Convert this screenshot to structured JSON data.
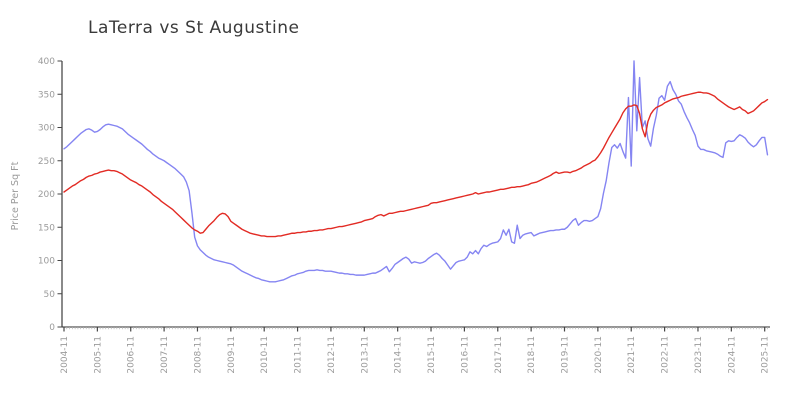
{
  "chart_data": {
    "type": "line",
    "title": "LaTerra vs St Augustine",
    "xlabel": "",
    "ylabel": "Price Per Sq Ft",
    "ylim": [
      0,
      400
    ],
    "y_ticks": [
      0,
      50,
      100,
      150,
      200,
      250,
      300,
      350,
      400
    ],
    "x_tick_labels": [
      "2004-11",
      "2005-11",
      "2006-11",
      "2007-11",
      "2008-11",
      "2009-11",
      "2010-11",
      "2011-11",
      "2012-11",
      "2013-11",
      "2014-11",
      "2015-11",
      "2016-11",
      "2017-11",
      "2018-11",
      "2019-11",
      "2020-11",
      "2021-11",
      "2022-11",
      "2023-11",
      "2024-11",
      "2025-11"
    ],
    "x_start": "2004-11",
    "x_interval": "monthly",
    "months_per_major_tick": 12,
    "grid": false,
    "legend_position": "none",
    "series": [
      {
        "name": "LaTerra",
        "color": "#8585f2",
        "values": [
          268,
          271,
          275,
          279,
          283,
          287,
          291,
          294,
          297,
          298,
          296,
          293,
          294,
          297,
          301,
          304,
          305,
          304,
          303,
          302,
          300,
          298,
          294,
          290,
          287,
          284,
          281,
          278,
          275,
          271,
          267,
          264,
          260,
          257,
          254,
          252,
          250,
          247,
          244,
          241,
          238,
          234,
          230,
          226,
          218,
          205,
          172,
          135,
          122,
          116,
          112,
          108,
          105,
          103,
          101,
          100,
          99,
          98,
          97,
          96,
          95,
          93,
          90,
          87,
          84,
          82,
          80,
          78,
          76,
          74,
          73,
          71,
          70,
          69,
          68,
          68,
          68,
          69,
          70,
          71,
          73,
          75,
          77,
          78,
          80,
          81,
          82,
          84,
          85,
          85,
          85,
          86,
          85,
          85,
          84,
          84,
          84,
          83,
          82,
          81,
          81,
          80,
          80,
          79,
          79,
          78,
          78,
          78,
          78,
          79,
          80,
          81,
          81,
          83,
          85,
          88,
          91,
          83,
          88,
          94,
          97,
          100,
          103,
          105,
          102,
          96,
          98,
          97,
          96,
          97,
          99,
          103,
          106,
          109,
          111,
          108,
          103,
          99,
          93,
          87,
          92,
          97,
          99,
          100,
          101,
          105,
          113,
          110,
          115,
          110,
          118,
          123,
          121,
          124,
          126,
          127,
          128,
          133,
          146,
          138,
          147,
          128,
          126,
          153,
          133,
          138,
          140,
          141,
          142,
          137,
          139,
          141,
          142,
          143,
          144,
          145,
          145,
          146,
          146,
          147,
          147,
          150,
          155,
          160,
          163,
          153,
          157,
          160,
          160,
          159,
          160,
          163,
          166,
          178,
          201,
          220,
          247,
          270,
          274,
          269,
          276,
          264,
          254,
          345,
          242,
          400,
          295,
          375,
          300,
          310,
          283,
          272,
          299,
          318,
          344,
          348,
          341,
          362,
          369,
          357,
          350,
          340,
          335,
          324,
          315,
          307,
          297,
          288,
          272,
          267,
          267,
          265,
          264,
          263,
          262,
          260,
          257,
          255,
          277,
          280,
          279,
          280,
          285,
          289,
          287,
          284,
          278,
          274,
          271,
          274,
          280,
          285,
          285,
          259
        ]
      },
      {
        "name": "St Augustine",
        "color": "#e22b24",
        "values": [
          203,
          206,
          209,
          212,
          214,
          217,
          220,
          222,
          225,
          227,
          228,
          230,
          231,
          233,
          234,
          235,
          236,
          235,
          235,
          234,
          232,
          230,
          227,
          224,
          221,
          219,
          217,
          214,
          212,
          209,
          206,
          203,
          199,
          196,
          193,
          189,
          186,
          183,
          180,
          177,
          173,
          169,
          165,
          161,
          157,
          153,
          149,
          146,
          144,
          141,
          142,
          147,
          152,
          156,
          160,
          165,
          169,
          171,
          170,
          166,
          159,
          156,
          153,
          150,
          147,
          145,
          143,
          141,
          140,
          139,
          138,
          137,
          137,
          136,
          136,
          136,
          136,
          137,
          137,
          138,
          139,
          140,
          141,
          141,
          142,
          142,
          143,
          143,
          144,
          144,
          145,
          145,
          146,
          146,
          147,
          148,
          148,
          149,
          150,
          151,
          151,
          152,
          153,
          154,
          155,
          156,
          157,
          158,
          160,
          161,
          162,
          163,
          166,
          168,
          169,
          167,
          169,
          171,
          171,
          172,
          173,
          174,
          174,
          175,
          176,
          177,
          178,
          179,
          180,
          181,
          182,
          183,
          186,
          187,
          187,
          188,
          189,
          190,
          191,
          192,
          193,
          194,
          195,
          196,
          197,
          198,
          199,
          200,
          202,
          200,
          201,
          202,
          203,
          203,
          204,
          205,
          206,
          207,
          207,
          208,
          209,
          210,
          210,
          211,
          211,
          212,
          213,
          214,
          216,
          217,
          218,
          220,
          222,
          224,
          226,
          228,
          231,
          233,
          231,
          232,
          233,
          233,
          232,
          234,
          235,
          237,
          239,
          242,
          244,
          246,
          249,
          251,
          256,
          262,
          269,
          277,
          285,
          292,
          299,
          306,
          313,
          322,
          328,
          332,
          332,
          334,
          333,
          321,
          298,
          286,
          309,
          320,
          326,
          330,
          332,
          334,
          337,
          339,
          341,
          343,
          344,
          345,
          347,
          348,
          349,
          350,
          351,
          352,
          353,
          353,
          352,
          352,
          351,
          349,
          347,
          343,
          340,
          337,
          334,
          331,
          329,
          327,
          329,
          331,
          327,
          325,
          321,
          323,
          325,
          329,
          333,
          337,
          339,
          342
        ]
      }
    ],
    "colors": {
      "axis": "#2a2a2a",
      "major_tick": "#444444",
      "minor_tick": "#b3b3b3",
      "tick_label": "#9b9b9b",
      "title": "#3a3a3a"
    }
  }
}
